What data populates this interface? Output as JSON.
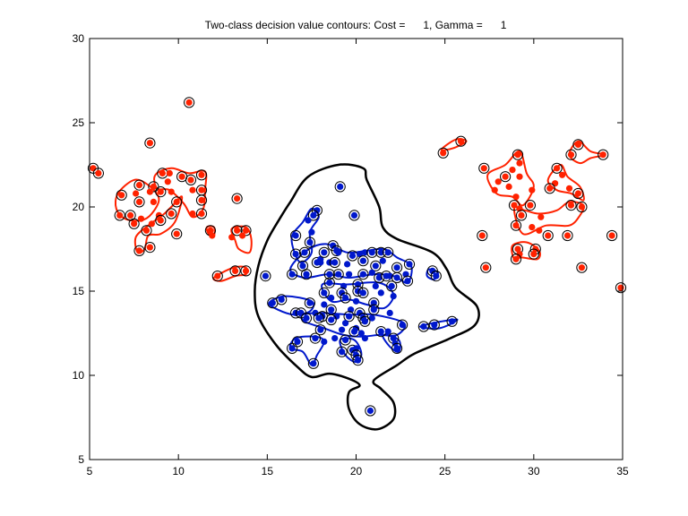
{
  "chart_data": {
    "type": "scatter",
    "title": "Two-class decision value contours: Cost =      1, Gamma =      1",
    "xlabel": "",
    "ylabel": "",
    "xlim": [
      5,
      35
    ],
    "ylim": [
      5,
      30
    ],
    "xticks": [
      5,
      10,
      15,
      20,
      25,
      30,
      35
    ],
    "yticks": [
      5,
      10,
      15,
      20,
      25,
      30
    ],
    "grid": false,
    "legend": "none",
    "colors": {
      "red_class": "#ff2200",
      "blue_class": "#0018cc",
      "boundary": "#000000",
      "axes": "#000000"
    },
    "series": [
      {
        "class": "red",
        "points": [
          [
            10.6,
            26.2,
            true
          ],
          [
            8.4,
            23.8,
            true
          ],
          [
            5.2,
            22.3,
            true
          ],
          [
            5.5,
            22.0,
            true
          ],
          [
            9.1,
            22.0,
            true
          ],
          [
            9.5,
            22.0,
            false
          ],
          [
            10.2,
            21.8,
            true
          ],
          [
            11.3,
            21.9,
            true
          ],
          [
            7.8,
            21.3,
            true
          ],
          [
            8.6,
            21.2,
            true
          ],
          [
            9.4,
            21.5,
            false
          ],
          [
            10.7,
            21.6,
            true
          ],
          [
            6.8,
            20.7,
            true
          ],
          [
            7.6,
            20.8,
            false
          ],
          [
            8.4,
            20.9,
            false
          ],
          [
            9.0,
            20.9,
            true
          ],
          [
            9.6,
            20.9,
            false
          ],
          [
            10.8,
            21.0,
            false
          ],
          [
            11.3,
            21.0,
            true
          ],
          [
            7.8,
            20.3,
            true
          ],
          [
            8.6,
            20.3,
            false
          ],
          [
            9.9,
            20.3,
            true
          ],
          [
            11.3,
            20.4,
            true
          ],
          [
            13.3,
            20.5,
            true
          ],
          [
            6.7,
            19.5,
            true
          ],
          [
            7.3,
            19.5,
            true
          ],
          [
            7.9,
            19.3,
            false
          ],
          [
            8.9,
            19.5,
            false
          ],
          [
            9.6,
            19.6,
            true
          ],
          [
            10.8,
            19.6,
            false
          ],
          [
            11.3,
            19.6,
            true
          ],
          [
            9.0,
            19.2,
            true
          ],
          [
            8.5,
            19.0,
            false
          ],
          [
            7.5,
            19.0,
            true
          ],
          [
            8.2,
            18.6,
            true
          ],
          [
            9.9,
            18.4,
            true
          ],
          [
            11.8,
            18.6,
            true
          ],
          [
            11.9,
            18.3,
            false
          ],
          [
            13.3,
            18.6,
            true
          ],
          [
            13.8,
            18.6,
            true
          ],
          [
            13.6,
            18.3,
            false
          ],
          [
            13.0,
            18.2,
            false
          ],
          [
            8.4,
            17.6,
            true
          ],
          [
            7.8,
            17.4,
            true
          ],
          [
            13.2,
            16.2,
            true
          ],
          [
            13.8,
            16.2,
            true
          ],
          [
            12.2,
            15.9,
            true
          ],
          [
            25.9,
            23.9,
            true
          ],
          [
            24.9,
            23.2,
            true
          ],
          [
            29.1,
            23.1,
            true
          ],
          [
            29.2,
            22.6,
            false
          ],
          [
            28.8,
            22.2,
            false
          ],
          [
            28.4,
            21.8,
            true
          ],
          [
            27.2,
            22.3,
            true
          ],
          [
            28.0,
            21.5,
            false
          ],
          [
            27.8,
            21.0,
            false
          ],
          [
            28.6,
            21.2,
            false
          ],
          [
            29.2,
            21.8,
            false
          ],
          [
            29.0,
            20.6,
            false
          ],
          [
            29.9,
            21.0,
            false
          ],
          [
            32.5,
            23.7,
            true
          ],
          [
            32.1,
            23.1,
            true
          ],
          [
            33.9,
            23.1,
            true
          ],
          [
            31.3,
            22.3,
            true
          ],
          [
            31.6,
            21.9,
            false
          ],
          [
            31.2,
            21.4,
            false
          ],
          [
            30.9,
            21.1,
            true
          ],
          [
            32.0,
            21.1,
            false
          ],
          [
            32.5,
            20.8,
            true
          ],
          [
            28.9,
            20.1,
            true
          ],
          [
            29.8,
            20.1,
            true
          ],
          [
            32.1,
            20.1,
            true
          ],
          [
            32.7,
            20.0,
            true
          ],
          [
            29.2,
            19.9,
            false
          ],
          [
            29.3,
            19.5,
            true
          ],
          [
            30.4,
            19.4,
            false
          ],
          [
            29.0,
            18.9,
            true
          ],
          [
            29.9,
            18.8,
            false
          ],
          [
            30.3,
            18.6,
            false
          ],
          [
            30.8,
            18.3,
            true
          ],
          [
            31.9,
            18.3,
            true
          ],
          [
            34.4,
            18.3,
            true
          ],
          [
            27.1,
            18.3,
            true
          ],
          [
            29.1,
            17.5,
            true
          ],
          [
            30.1,
            17.5,
            true
          ],
          [
            29.2,
            17.2,
            false
          ],
          [
            30.0,
            17.2,
            true
          ],
          [
            29.0,
            16.9,
            true
          ],
          [
            27.3,
            16.4,
            true
          ],
          [
            32.7,
            16.4,
            true
          ],
          [
            34.9,
            15.2,
            true
          ]
        ]
      },
      {
        "class": "blue",
        "points": [
          [
            19.1,
            21.2,
            true
          ],
          [
            19.9,
            19.5,
            true
          ],
          [
            17.8,
            19.8,
            true
          ],
          [
            17.6,
            19.5,
            true
          ],
          [
            17.3,
            19.2,
            false
          ],
          [
            17.5,
            18.5,
            false
          ],
          [
            16.6,
            18.3,
            true
          ],
          [
            17.4,
            17.9,
            true
          ],
          [
            17.8,
            16.7,
            true
          ],
          [
            18.0,
            16.9,
            false
          ],
          [
            16.6,
            17.2,
            true
          ],
          [
            17.1,
            17.3,
            true
          ],
          [
            18.2,
            17.3,
            true
          ],
          [
            18.7,
            17.7,
            true
          ],
          [
            18.9,
            17.4,
            true
          ],
          [
            19.0,
            17.3,
            false
          ],
          [
            19.8,
            17.1,
            true
          ],
          [
            20.2,
            17.2,
            false
          ],
          [
            20.5,
            17.3,
            false
          ],
          [
            20.9,
            17.3,
            true
          ],
          [
            21.4,
            17.3,
            true
          ],
          [
            21.8,
            17.3,
            true
          ],
          [
            17.0,
            16.5,
            true
          ],
          [
            18.0,
            16.7,
            false
          ],
          [
            18.5,
            16.7,
            false
          ],
          [
            18.8,
            16.7,
            true
          ],
          [
            19.5,
            16.6,
            false
          ],
          [
            20.4,
            16.8,
            true
          ],
          [
            21.1,
            16.5,
            true
          ],
          [
            21.5,
            16.8,
            false
          ],
          [
            22.3,
            16.4,
            true
          ],
          [
            22.8,
            16.0,
            false
          ],
          [
            23.0,
            16.6,
            true
          ],
          [
            16.4,
            16.0,
            true
          ],
          [
            17.2,
            16.0,
            true
          ],
          [
            18.5,
            16.0,
            true
          ],
          [
            19.0,
            16.0,
            true
          ],
          [
            19.6,
            16.0,
            false
          ],
          [
            20.4,
            16.0,
            true
          ],
          [
            20.9,
            16.1,
            false
          ],
          [
            21.3,
            15.8,
            true
          ],
          [
            21.7,
            15.9,
            true
          ],
          [
            21.9,
            15.9,
            false
          ],
          [
            22.3,
            15.8,
            true
          ],
          [
            22.9,
            15.6,
            true
          ],
          [
            14.9,
            15.9,
            true
          ],
          [
            24.3,
            16.2,
            true
          ],
          [
            24.5,
            15.9,
            true
          ],
          [
            18.5,
            15.5,
            true
          ],
          [
            19.3,
            15.3,
            false
          ],
          [
            20.1,
            15.4,
            true
          ],
          [
            21.1,
            15.3,
            false
          ],
          [
            22.0,
            15.3,
            true
          ],
          [
            18.2,
            14.9,
            true
          ],
          [
            19.2,
            14.9,
            true
          ],
          [
            20.1,
            15.0,
            true
          ],
          [
            20.4,
            14.9,
            true
          ],
          [
            21.4,
            14.9,
            false
          ],
          [
            22.1,
            14.7,
            false
          ],
          [
            18.6,
            14.6,
            false
          ],
          [
            19.4,
            14.6,
            true
          ],
          [
            20.0,
            14.4,
            false
          ],
          [
            21.0,
            14.3,
            true
          ],
          [
            15.8,
            14.5,
            true
          ],
          [
            15.3,
            14.3,
            true
          ],
          [
            17.4,
            14.3,
            true
          ],
          [
            18.2,
            14.2,
            false
          ],
          [
            18.6,
            13.9,
            true
          ],
          [
            19.7,
            13.9,
            false
          ],
          [
            20.2,
            13.7,
            true
          ],
          [
            21.0,
            13.9,
            true
          ],
          [
            21.9,
            13.7,
            false
          ],
          [
            16.6,
            13.7,
            true
          ],
          [
            16.9,
            13.7,
            true
          ],
          [
            17.7,
            13.7,
            false
          ],
          [
            18.1,
            13.5,
            true
          ],
          [
            18.9,
            13.5,
            false
          ],
          [
            19.6,
            13.5,
            true
          ],
          [
            20.4,
            13.4,
            true
          ],
          [
            20.9,
            13.4,
            false
          ],
          [
            19.4,
            13.1,
            false
          ],
          [
            17.2,
            13.4,
            true
          ],
          [
            17.9,
            13.4,
            true
          ],
          [
            18.6,
            13.3,
            true
          ],
          [
            20.5,
            13.2,
            true
          ],
          [
            20.0,
            12.8,
            false
          ],
          [
            22.6,
            13.0,
            true
          ],
          [
            23.8,
            12.9,
            true
          ],
          [
            24.4,
            13.0,
            true
          ],
          [
            25.4,
            13.2,
            true
          ],
          [
            19.2,
            12.7,
            false
          ],
          [
            19.9,
            12.6,
            true
          ],
          [
            20.3,
            12.5,
            false
          ],
          [
            21.4,
            12.6,
            true
          ],
          [
            21.8,
            12.6,
            false
          ],
          [
            22.1,
            12.2,
            true
          ],
          [
            18.0,
            12.7,
            true
          ],
          [
            17.7,
            12.2,
            true
          ],
          [
            18.8,
            12.2,
            false
          ],
          [
            19.4,
            12.1,
            true
          ],
          [
            20.5,
            12.2,
            false
          ],
          [
            22.2,
            11.9,
            false
          ],
          [
            16.7,
            12.0,
            true
          ],
          [
            18.2,
            12.0,
            false
          ],
          [
            19.8,
            11.5,
            true
          ],
          [
            16.4,
            11.6,
            true
          ],
          [
            19.2,
            11.4,
            true
          ],
          [
            20.0,
            11.6,
            false
          ],
          [
            22.3,
            11.6,
            true
          ],
          [
            20.0,
            11.2,
            true
          ],
          [
            17.6,
            10.7,
            true
          ],
          [
            20.1,
            10.9,
            true
          ],
          [
            20.8,
            7.9,
            true
          ]
        ]
      }
    ]
  }
}
